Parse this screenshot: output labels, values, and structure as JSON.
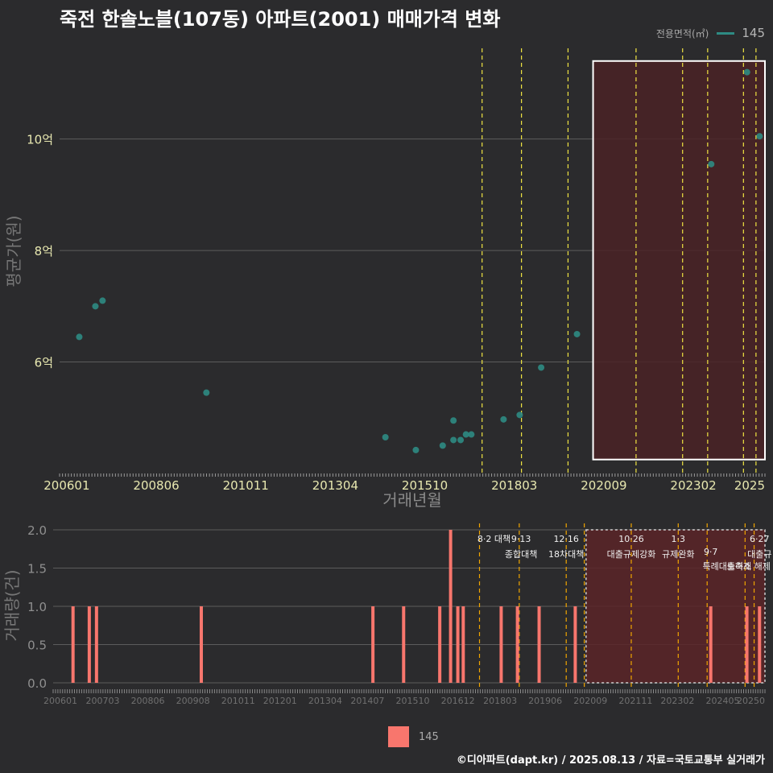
{
  "title": "죽전 한솔노블(107동) 아파트(2001) 매매가격 변화",
  "legend_top": {
    "label": "전용면적(㎡)",
    "value": "145"
  },
  "legend_bottom": {
    "value": "145"
  },
  "credit": "©디아파트(dapt.kr) / 2025.08.13 / 자료=국토교통부 실거래가",
  "colors": {
    "point": "#2e8b83",
    "bar": "#f8766d",
    "policy_line": "#f0e442",
    "policy_line_bottom": "#f0a500",
    "highlight_fill": "#4a2226"
  },
  "chart_data": [
    {
      "type": "scatter",
      "title": "죽전 한솔노블(107동) 아파트(2001) 매매가격 변화",
      "xlabel": "거래년월",
      "ylabel": "평균가(원)",
      "xlim": [
        2005.8,
        2025.5
      ],
      "ylim": [
        4.0,
        11.7
      ],
      "yticks": [
        6,
        8,
        10
      ],
      "ytick_labels": [
        "6억",
        "8억",
        "10억"
      ],
      "xticks": [
        2006.0,
        2008.5,
        2011.0,
        2013.5,
        2016.0,
        2018.5,
        2021.0,
        2023.5,
        2025.5
      ],
      "xtick_labels": [
        "200601",
        "200806",
        "201011",
        "201304",
        "201510",
        "201803",
        "202009",
        "202302",
        "2025"
      ],
      "series": [
        {
          "name": "145",
          "x": [
            2006.35,
            2006.8,
            2007.0,
            2009.9,
            2014.9,
            2015.75,
            2016.5,
            2016.8,
            2016.8,
            2017.0,
            2017.15,
            2017.3,
            2018.2,
            2018.65,
            2019.25,
            2020.25,
            2024.0,
            2025.0,
            2025.35
          ],
          "y": [
            6.45,
            7.0,
            7.1,
            5.45,
            4.65,
            4.42,
            4.5,
            4.95,
            4.6,
            4.6,
            4.7,
            4.7,
            4.97,
            5.05,
            5.9,
            6.5,
            9.55,
            11.2,
            10.05
          ]
        }
      ],
      "policy_lines": [
        2017.6,
        2018.7,
        2020.0,
        2021.9,
        2023.2,
        2023.9,
        2024.9,
        2025.25
      ],
      "highlight_range": {
        "x": [
          2020.7,
          2025.5
        ],
        "y": [
          4.25,
          11.4
        ]
      }
    },
    {
      "type": "bar",
      "xlabel": "",
      "ylabel": "거래량(건)",
      "xlim": [
        2005.8,
        2025.5
      ],
      "ylim": [
        0,
        2.0
      ],
      "yticks": [
        0,
        0.5,
        1,
        1.5,
        2
      ],
      "ytick_labels": [
        "0.0",
        "0.5",
        "1.0",
        "1.5",
        "2.0"
      ],
      "xticks": [
        2006.0,
        2007.17,
        2008.42,
        2009.67,
        2010.92,
        2012.08,
        2013.33,
        2014.5,
        2015.75,
        2017.0,
        2018.17,
        2019.42,
        2020.67,
        2021.92,
        2023.08,
        2024.33,
        2025.5
      ],
      "xtick_labels": [
        "200601",
        "200703",
        "200806",
        "200908",
        "201011",
        "201201",
        "201304",
        "201407",
        "201510",
        "201612",
        "201803",
        "201906",
        "202009",
        "202111",
        "202302",
        "202405",
        "20250"
      ],
      "series": [
        {
          "name": "145",
          "x": [
            2006.35,
            2006.8,
            2007.0,
            2009.9,
            2014.65,
            2015.5,
            2016.5,
            2016.8,
            2017.0,
            2017.15,
            2018.2,
            2018.65,
            2019.25,
            2020.25,
            2024.0,
            2025.0,
            2025.35
          ],
          "values": [
            1,
            1,
            1,
            1,
            1,
            1,
            1,
            2,
            1,
            1,
            1,
            1,
            1,
            1,
            1,
            1,
            1
          ]
        }
      ],
      "policy_lines": [
        2017.6,
        2018.7,
        2020.0,
        2020.5,
        2021.8,
        2023.1,
        2023.9,
        2024.95,
        2025.2
      ],
      "annotations": [
        {
          "x": 2018.0,
          "line1": "8·2 대책",
          "line2": ""
        },
        {
          "x": 2018.75,
          "line1": "9·13",
          "line2": "종합대책"
        },
        {
          "x": 2020.0,
          "line1": "12·16",
          "line2": "18차대책"
        },
        {
          "x": 2021.8,
          "line1": "10·26",
          "line2": "대출규제강화"
        },
        {
          "x": 2023.1,
          "line1": "1·3",
          "line2": "규제완화"
        },
        {
          "x": 2024.0,
          "line1": "",
          "line2": "9·7"
        },
        {
          "x": 2024.45,
          "line1": "",
          "line2": "특례대출축소"
        },
        {
          "x": 2025.05,
          "line1": "",
          "line2": "토허제 해제"
        },
        {
          "x": 2025.35,
          "line1": "6·27",
          "line2": "대출규"
        }
      ],
      "highlight_range": {
        "x": [
          2020.55,
          2025.5
        ],
        "y": [
          0,
          2.0
        ]
      }
    }
  ]
}
